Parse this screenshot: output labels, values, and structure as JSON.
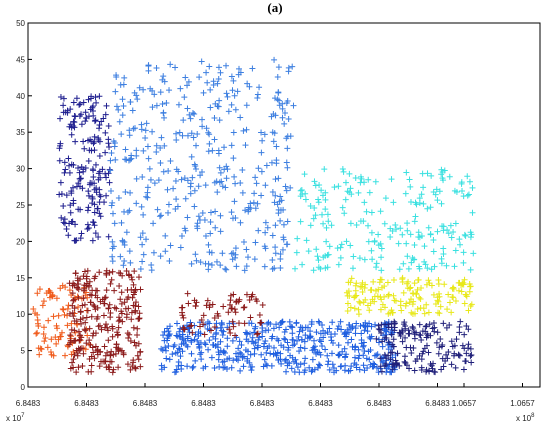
{
  "title": "(a)",
  "chart_data": {
    "type": "scatter",
    "title": "(a)",
    "marker": "+",
    "grid": false,
    "ylim": [
      0,
      50
    ],
    "yticks": [
      "0",
      "5",
      "10",
      "15",
      "20",
      "25",
      "30",
      "35",
      "40",
      "45",
      "50"
    ],
    "xtick_labels": [
      "6.8483",
      "6.8483",
      "6.8483",
      "6.8483",
      "6.8483",
      "6.8483",
      "6.8483",
      "6.8483",
      "1.0657",
      "1.0657",
      "1.0657",
      "1.0657"
    ],
    "x_exponent_left": "x 10",
    "x_exponent_left_power": "7",
    "x_exponent_right": "x 10",
    "x_exponent_right_power": "8",
    "series": [
      {
        "color": "#1f1f8f",
        "clusters": [
          {
            "x": [
              0.06,
              0.16
            ],
            "y": [
              20,
              40
            ],
            "n": 180
          }
        ]
      },
      {
        "color": "#3d7fe0",
        "clusters": [
          {
            "x": [
              0.16,
              0.52
            ],
            "y": [
              16,
              45
            ],
            "n": 420
          }
        ]
      },
      {
        "color": "#3ae0e0",
        "clusters": [
          {
            "x": [
              0.52,
              0.87
            ],
            "y": [
              16,
              30
            ],
            "n": 220
          }
        ]
      },
      {
        "color": "#e8e818",
        "clusters": [
          {
            "x": [
              0.62,
              0.87
            ],
            "y": [
              10,
              15
            ],
            "n": 150
          }
        ]
      },
      {
        "color": "#1f5fe0",
        "clusters": [
          {
            "x": [
              0.26,
              0.72
            ],
            "y": [
              2,
              9
            ],
            "n": 480
          }
        ]
      },
      {
        "color": "#20207a",
        "clusters": [
          {
            "x": [
              0.68,
              0.87
            ],
            "y": [
              2,
              9
            ],
            "n": 160
          }
        ]
      },
      {
        "color": "#f05a1a",
        "clusters": [
          {
            "x": [
              0.01,
              0.12
            ],
            "y": [
              4,
              14
            ],
            "n": 90
          }
        ]
      },
      {
        "color": "#8b1a1a",
        "clusters": [
          {
            "x": [
              0.08,
              0.22
            ],
            "y": [
              2,
              16
            ],
            "n": 260
          },
          {
            "x": [
              0.3,
              0.46
            ],
            "y": [
              7,
              13
            ],
            "n": 70
          }
        ]
      }
    ]
  }
}
